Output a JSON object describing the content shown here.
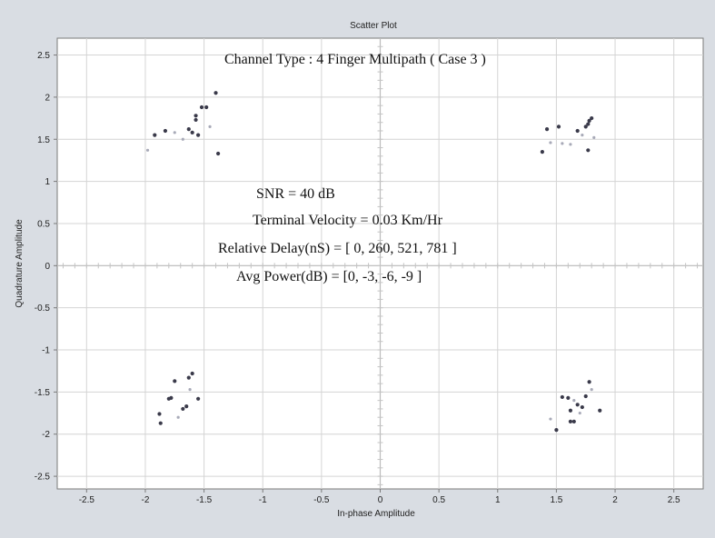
{
  "chart_data": {
    "type": "scatter",
    "title": "Scatter Plot",
    "xlabel": "In-phase Amplitude",
    "ylabel": "Quadrature Amplitude",
    "xlim": [
      -2.75,
      2.75
    ],
    "ylim": [
      -2.65,
      2.7
    ],
    "xticks": [
      "-2.5",
      "-2",
      "-1.5",
      "-1",
      "-0.5",
      "0",
      "0.5",
      "1",
      "1.5",
      "2",
      "2.5"
    ],
    "yticks": [
      "2.5",
      "2",
      "1.5",
      "1",
      "0.5",
      "0",
      "-0.5",
      "-1",
      "-1.5",
      "-2",
      "-2.5"
    ],
    "grid": true,
    "colors": {
      "point_dark": "#3a3a4a",
      "point_light": "#a8aab8",
      "grid": "#d4d4d4",
      "axis_frame": "#7a7a7a"
    },
    "annotations": [
      "Channel Type : 4 Finger Multipath ( Case 3 )",
      "SNR = 40 dB",
      "Terminal Velocity = 0.03 Km/Hr",
      "Relative Delay(nS) = [ 0, 260, 521, 781 ]",
      "Avg Power(dB) = [0, -3, -6, -9 ]"
    ],
    "points": [
      {
        "x": -1.92,
        "y": 1.55,
        "dark": true
      },
      {
        "x": -1.83,
        "y": 1.6,
        "dark": true
      },
      {
        "x": -1.75,
        "y": 1.58,
        "dark": false
      },
      {
        "x": -1.68,
        "y": 1.5,
        "dark": false
      },
      {
        "x": -1.63,
        "y": 1.62,
        "dark": true
      },
      {
        "x": -1.6,
        "y": 1.58,
        "dark": true
      },
      {
        "x": -1.57,
        "y": 1.78,
        "dark": true
      },
      {
        "x": -1.57,
        "y": 1.73,
        "dark": true
      },
      {
        "x": -1.55,
        "y": 1.55,
        "dark": true
      },
      {
        "x": -1.52,
        "y": 1.88,
        "dark": true
      },
      {
        "x": -1.48,
        "y": 1.88,
        "dark": true
      },
      {
        "x": -1.4,
        "y": 2.05,
        "dark": true
      },
      {
        "x": -1.38,
        "y": 1.33,
        "dark": true
      },
      {
        "x": -1.98,
        "y": 1.37,
        "dark": false
      },
      {
        "x": -1.45,
        "y": 1.65,
        "dark": false
      },
      {
        "x": 1.38,
        "y": 1.35,
        "dark": true
      },
      {
        "x": 1.42,
        "y": 1.62,
        "dark": true
      },
      {
        "x": 1.45,
        "y": 1.46,
        "dark": false
      },
      {
        "x": 1.52,
        "y": 1.65,
        "dark": true
      },
      {
        "x": 1.55,
        "y": 1.45,
        "dark": false
      },
      {
        "x": 1.68,
        "y": 1.6,
        "dark": true
      },
      {
        "x": 1.72,
        "y": 1.55,
        "dark": false
      },
      {
        "x": 1.75,
        "y": 1.65,
        "dark": true
      },
      {
        "x": 1.77,
        "y": 1.68,
        "dark": true
      },
      {
        "x": 1.78,
        "y": 1.72,
        "dark": true
      },
      {
        "x": 1.8,
        "y": 1.75,
        "dark": true
      },
      {
        "x": 1.77,
        "y": 1.37,
        "dark": true
      },
      {
        "x": 1.82,
        "y": 1.52,
        "dark": false
      },
      {
        "x": 1.62,
        "y": 1.44,
        "dark": false
      },
      {
        "x": -1.88,
        "y": -1.76,
        "dark": true
      },
      {
        "x": -1.87,
        "y": -1.87,
        "dark": true
      },
      {
        "x": -1.8,
        "y": -1.58,
        "dark": true
      },
      {
        "x": -1.78,
        "y": -1.57,
        "dark": true
      },
      {
        "x": -1.75,
        "y": -1.37,
        "dark": true
      },
      {
        "x": -1.72,
        "y": -1.8,
        "dark": false
      },
      {
        "x": -1.68,
        "y": -1.7,
        "dark": true
      },
      {
        "x": -1.65,
        "y": -1.67,
        "dark": true
      },
      {
        "x": -1.63,
        "y": -1.33,
        "dark": true
      },
      {
        "x": -1.6,
        "y": -1.28,
        "dark": true
      },
      {
        "x": -1.55,
        "y": -1.58,
        "dark": true
      },
      {
        "x": -1.62,
        "y": -1.47,
        "dark": false
      },
      {
        "x": 1.45,
        "y": -1.82,
        "dark": false
      },
      {
        "x": 1.5,
        "y": -1.95,
        "dark": true
      },
      {
        "x": 1.55,
        "y": -1.56,
        "dark": true
      },
      {
        "x": 1.6,
        "y": -1.57,
        "dark": true
      },
      {
        "x": 1.62,
        "y": -1.72,
        "dark": true
      },
      {
        "x": 1.62,
        "y": -1.85,
        "dark": true
      },
      {
        "x": 1.65,
        "y": -1.85,
        "dark": true
      },
      {
        "x": 1.65,
        "y": -1.6,
        "dark": false
      },
      {
        "x": 1.68,
        "y": -1.65,
        "dark": true
      },
      {
        "x": 1.7,
        "y": -1.75,
        "dark": false
      },
      {
        "x": 1.72,
        "y": -1.68,
        "dark": true
      },
      {
        "x": 1.75,
        "y": -1.55,
        "dark": true
      },
      {
        "x": 1.78,
        "y": -1.38,
        "dark": true
      },
      {
        "x": 1.8,
        "y": -1.47,
        "dark": false
      },
      {
        "x": 1.87,
        "y": -1.72,
        "dark": true
      }
    ]
  }
}
